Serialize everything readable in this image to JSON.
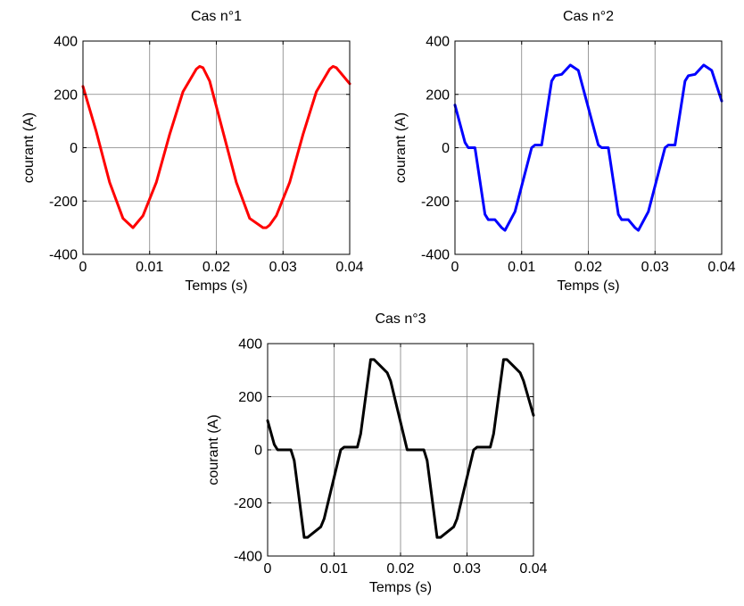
{
  "chart_data": [
    {
      "type": "line",
      "title": "Cas n°1",
      "xlabel": "Temps (s)",
      "ylabel": "courant (A)",
      "xlim": [
        0,
        0.04
      ],
      "ylim": [
        -400,
        400
      ],
      "xticks": [
        0,
        0.01,
        0.02,
        0.03,
        0.04
      ],
      "xtick_labels": [
        "0",
        "0.01",
        "0.02",
        "0.03",
        "0.04"
      ],
      "yticks": [
        -400,
        -200,
        0,
        200,
        400
      ],
      "ytick_labels": [
        "-400",
        "-200",
        "0",
        "200",
        "400"
      ],
      "grid": true,
      "series": [
        {
          "color": "#ff0000",
          "x": [
            0,
            0.002,
            0.004,
            0.006,
            0.0075,
            0.009,
            0.011,
            0.013,
            0.015,
            0.017,
            0.0175,
            0.018,
            0.019,
            0.021,
            0.023,
            0.025,
            0.027,
            0.0275,
            0.028,
            0.029,
            0.031,
            0.033,
            0.035,
            0.037,
            0.0375,
            0.038,
            0.039,
            0.04
          ],
          "y": [
            230,
            60,
            -130,
            -265,
            -300,
            -255,
            -130,
            50,
            210,
            295,
            305,
            300,
            250,
            60,
            -130,
            -265,
            -300,
            -300,
            -290,
            -255,
            -130,
            50,
            210,
            295,
            305,
            300,
            270,
            240
          ]
        }
      ]
    },
    {
      "type": "line",
      "title": "Cas n°2",
      "xlabel": "Temps (s)",
      "ylabel": "courant (A)",
      "xlim": [
        0,
        0.04
      ],
      "ylim": [
        -400,
        400
      ],
      "xticks": [
        0,
        0.01,
        0.02,
        0.03,
        0.04
      ],
      "xtick_labels": [
        "0",
        "0.01",
        "0.02",
        "0.03",
        "0.04"
      ],
      "yticks": [
        -400,
        -200,
        0,
        200,
        400
      ],
      "ytick_labels": [
        "-400",
        "-200",
        "0",
        "200",
        "400"
      ],
      "grid": true,
      "series": [
        {
          "color": "#0000ff",
          "x": [
            0,
            0.0015,
            0.002,
            0.003,
            0.0045,
            0.005,
            0.006,
            0.007,
            0.0075,
            0.009,
            0.0115,
            0.012,
            0.013,
            0.0145,
            0.015,
            0.016,
            0.0173,
            0.0185,
            0.0215,
            0.022,
            0.023,
            0.0245,
            0.025,
            0.026,
            0.027,
            0.0275,
            0.029,
            0.0315,
            0.032,
            0.033,
            0.0345,
            0.035,
            0.036,
            0.0373,
            0.0385,
            0.04
          ],
          "y": [
            160,
            20,
            0,
            0,
            -250,
            -270,
            -270,
            -300,
            -310,
            -240,
            0,
            10,
            10,
            250,
            270,
            275,
            310,
            290,
            10,
            0,
            0,
            -250,
            -270,
            -270,
            -300,
            -310,
            -240,
            0,
            10,
            10,
            250,
            270,
            275,
            310,
            290,
            175
          ]
        }
      ]
    },
    {
      "type": "line",
      "title": "Cas n°3",
      "xlabel": "Temps (s)",
      "ylabel": "courant (A)",
      "xlim": [
        0,
        0.04
      ],
      "ylim": [
        -400,
        400
      ],
      "xticks": [
        0,
        0.01,
        0.02,
        0.03,
        0.04
      ],
      "xtick_labels": [
        "0",
        "0.01",
        "0.02",
        "0.03",
        "0.04"
      ],
      "yticks": [
        -400,
        -200,
        0,
        200,
        400
      ],
      "ytick_labels": [
        "-400",
        "-200",
        "0",
        "200",
        "400"
      ],
      "grid": true,
      "series": [
        {
          "color": "#000000",
          "x": [
            0,
            0.001,
            0.0015,
            0.0035,
            0.004,
            0.0055,
            0.006,
            0.008,
            0.0085,
            0.011,
            0.0115,
            0.0135,
            0.014,
            0.0155,
            0.016,
            0.018,
            0.0185,
            0.021,
            0.0215,
            0.0235,
            0.024,
            0.0255,
            0.026,
            0.028,
            0.0285,
            0.031,
            0.0315,
            0.0335,
            0.034,
            0.0355,
            0.036,
            0.038,
            0.0385,
            0.04
          ],
          "y": [
            110,
            20,
            0,
            0,
            -40,
            -330,
            -330,
            -290,
            -260,
            0,
            10,
            10,
            60,
            340,
            340,
            290,
            260,
            0,
            0,
            0,
            -40,
            -330,
            -330,
            -290,
            -260,
            0,
            10,
            10,
            60,
            340,
            340,
            290,
            260,
            130
          ]
        }
      ]
    }
  ]
}
